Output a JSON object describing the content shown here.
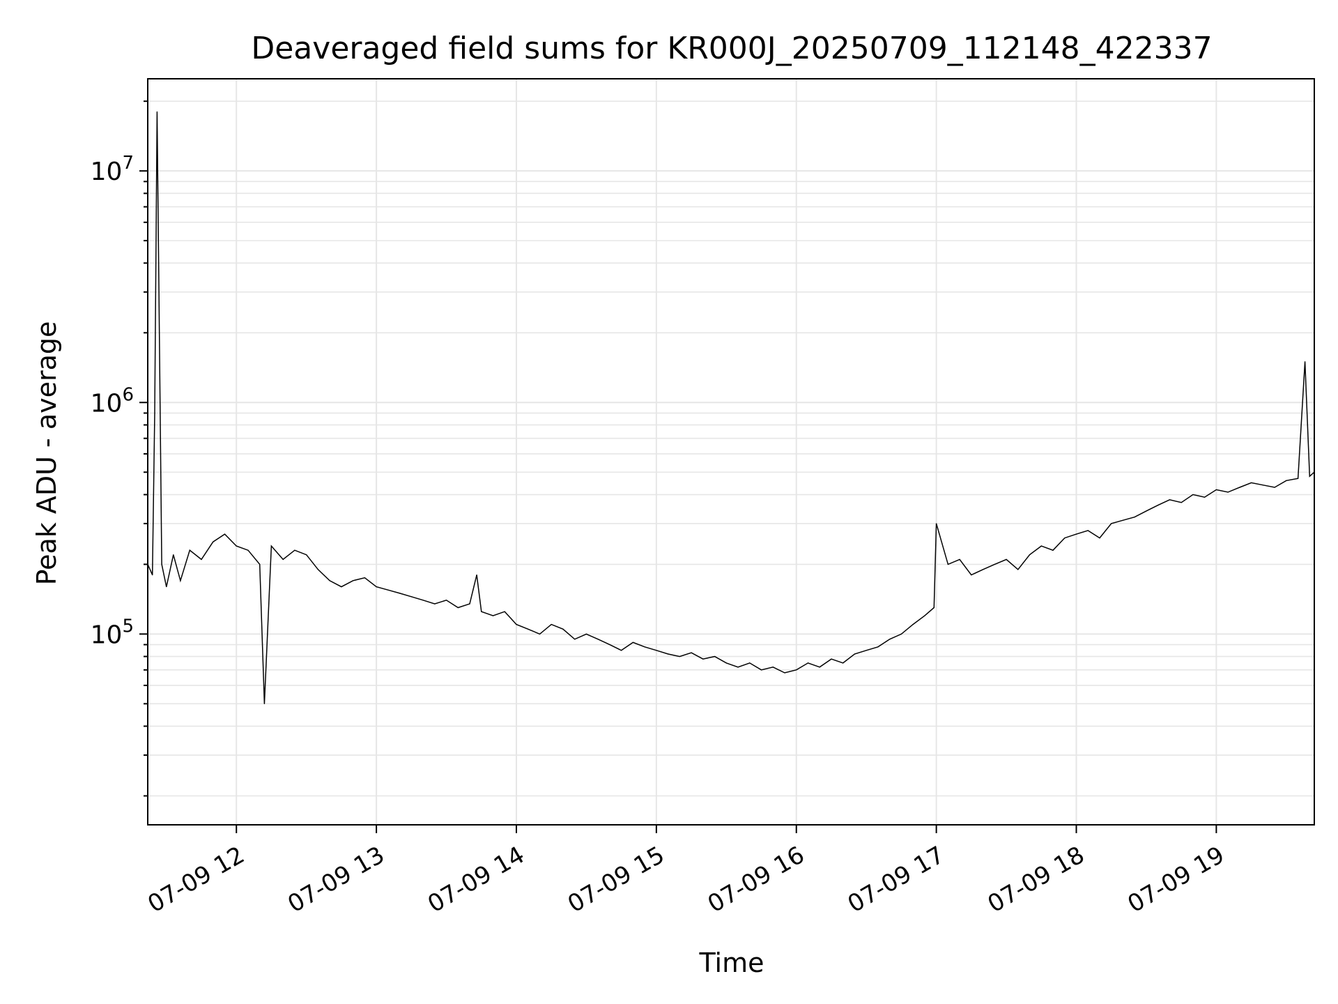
{
  "chart_data": {
    "type": "line",
    "title": "Deaveraged field sums for KR000J_20250709_112148_422337",
    "xlabel": "Time",
    "ylabel": "Peak ADU - average",
    "yscale": "log",
    "ylim": [
      15000,
      25000000
    ],
    "xlim": [
      "2025-07-09 11:22",
      "2025-07-09 19:42"
    ],
    "grid": true,
    "line_color": "#000000",
    "grid_color": "#e6e6e6",
    "xticks": [
      {
        "t": "2025-07-09 12:00",
        "label": "07-09 12"
      },
      {
        "t": "2025-07-09 13:00",
        "label": "07-09 13"
      },
      {
        "t": "2025-07-09 14:00",
        "label": "07-09 14"
      },
      {
        "t": "2025-07-09 15:00",
        "label": "07-09 15"
      },
      {
        "t": "2025-07-09 16:00",
        "label": "07-09 16"
      },
      {
        "t": "2025-07-09 17:00",
        "label": "07-09 17"
      },
      {
        "t": "2025-07-09 18:00",
        "label": "07-09 18"
      },
      {
        "t": "2025-07-09 19:00",
        "label": "07-09 19"
      }
    ],
    "yticks": [
      {
        "value": 100000,
        "base": "10",
        "exp": "5"
      },
      {
        "value": 1000000,
        "base": "10",
        "exp": "6"
      },
      {
        "value": 10000000,
        "base": "10",
        "exp": "7"
      }
    ],
    "series": [
      {
        "x": [
          "2025-07-09 11:22",
          "2025-07-09 11:24",
          "2025-07-09 11:25",
          "2025-07-09 11:26",
          "2025-07-09 11:28",
          "2025-07-09 11:30",
          "2025-07-09 11:33",
          "2025-07-09 11:36",
          "2025-07-09 11:40",
          "2025-07-09 11:45",
          "2025-07-09 11:50",
          "2025-07-09 11:55",
          "2025-07-09 12:00",
          "2025-07-09 12:05",
          "2025-07-09 12:10",
          "2025-07-09 12:12",
          "2025-07-09 12:15",
          "2025-07-09 12:20",
          "2025-07-09 12:25",
          "2025-07-09 12:30",
          "2025-07-09 12:35",
          "2025-07-09 12:40",
          "2025-07-09 12:45",
          "2025-07-09 12:50",
          "2025-07-09 12:55",
          "2025-07-09 13:00",
          "2025-07-09 13:05",
          "2025-07-09 13:10",
          "2025-07-09 13:15",
          "2025-07-09 13:20",
          "2025-07-09 13:25",
          "2025-07-09 13:30",
          "2025-07-09 13:35",
          "2025-07-09 13:40",
          "2025-07-09 13:43",
          "2025-07-09 13:45",
          "2025-07-09 13:50",
          "2025-07-09 13:55",
          "2025-07-09 14:00",
          "2025-07-09 14:05",
          "2025-07-09 14:10",
          "2025-07-09 14:15",
          "2025-07-09 14:20",
          "2025-07-09 14:25",
          "2025-07-09 14:30",
          "2025-07-09 14:35",
          "2025-07-09 14:40",
          "2025-07-09 14:45",
          "2025-07-09 14:50",
          "2025-07-09 14:55",
          "2025-07-09 15:00",
          "2025-07-09 15:05",
          "2025-07-09 15:10",
          "2025-07-09 15:15",
          "2025-07-09 15:20",
          "2025-07-09 15:25",
          "2025-07-09 15:30",
          "2025-07-09 15:35",
          "2025-07-09 15:40",
          "2025-07-09 15:45",
          "2025-07-09 15:50",
          "2025-07-09 15:55",
          "2025-07-09 16:00",
          "2025-07-09 16:05",
          "2025-07-09 16:10",
          "2025-07-09 16:15",
          "2025-07-09 16:20",
          "2025-07-09 16:25",
          "2025-07-09 16:30",
          "2025-07-09 16:35",
          "2025-07-09 16:40",
          "2025-07-09 16:45",
          "2025-07-09 16:50",
          "2025-07-09 16:55",
          "2025-07-09 16:59",
          "2025-07-09 17:00",
          "2025-07-09 17:05",
          "2025-07-09 17:10",
          "2025-07-09 17:15",
          "2025-07-09 17:20",
          "2025-07-09 17:25",
          "2025-07-09 17:30",
          "2025-07-09 17:35",
          "2025-07-09 17:40",
          "2025-07-09 17:45",
          "2025-07-09 17:50",
          "2025-07-09 17:55",
          "2025-07-09 18:00",
          "2025-07-09 18:05",
          "2025-07-09 18:10",
          "2025-07-09 18:15",
          "2025-07-09 18:20",
          "2025-07-09 18:25",
          "2025-07-09 18:30",
          "2025-07-09 18:35",
          "2025-07-09 18:40",
          "2025-07-09 18:45",
          "2025-07-09 18:50",
          "2025-07-09 18:55",
          "2025-07-09 19:00",
          "2025-07-09 19:05",
          "2025-07-09 19:10",
          "2025-07-09 19:15",
          "2025-07-09 19:20",
          "2025-07-09 19:25",
          "2025-07-09 19:30",
          "2025-07-09 19:35",
          "2025-07-09 19:38",
          "2025-07-09 19:40",
          "2025-07-09 19:42"
        ],
        "values": [
          200000,
          180000,
          900000,
          18000000,
          200000,
          160000,
          220000,
          170000,
          230000,
          210000,
          250000,
          270000,
          240000,
          230000,
          200000,
          50000,
          240000,
          210000,
          230000,
          220000,
          190000,
          170000,
          160000,
          170000,
          175000,
          160000,
          155000,
          150000,
          145000,
          140000,
          135000,
          140000,
          130000,
          135000,
          180000,
          125000,
          120000,
          125000,
          110000,
          105000,
          100000,
          110000,
          105000,
          95000,
          100000,
          95000,
          90000,
          85000,
          92000,
          88000,
          85000,
          82000,
          80000,
          83000,
          78000,
          80000,
          75000,
          72000,
          75000,
          70000,
          72000,
          68000,
          70000,
          75000,
          72000,
          78000,
          75000,
          82000,
          85000,
          88000,
          95000,
          100000,
          110000,
          120000,
          130000,
          300000,
          200000,
          210000,
          180000,
          190000,
          200000,
          210000,
          190000,
          220000,
          240000,
          230000,
          260000,
          270000,
          280000,
          260000,
          300000,
          310000,
          320000,
          340000,
          360000,
          380000,
          370000,
          400000,
          390000,
          420000,
          410000,
          430000,
          450000,
          440000,
          430000,
          460000,
          470000,
          1500000,
          480000,
          500000
        ]
      }
    ]
  }
}
